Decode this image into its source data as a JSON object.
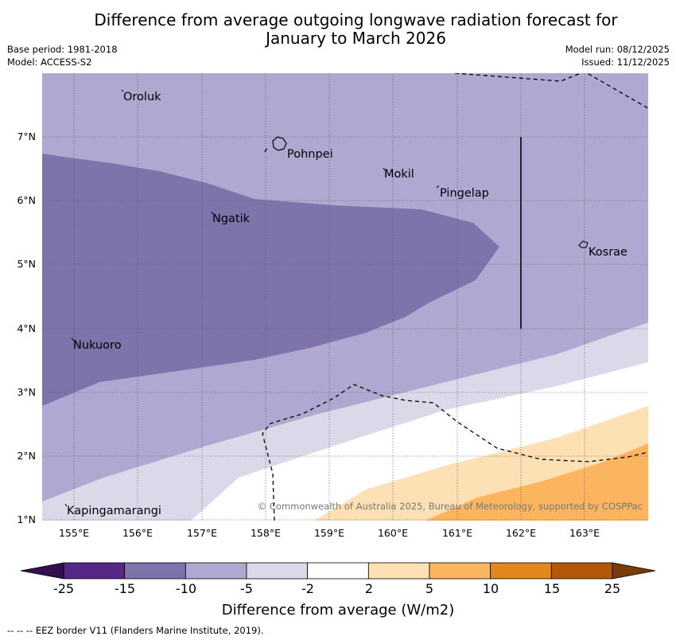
{
  "title_line1": "Difference from average outgoing longwave radiation forecast for",
  "title_line2": "January to March 2026",
  "base_period": "Base period: 1981-2018",
  "model": "Model: ACCESS-S2",
  "model_run": "Model run: 08/12/2025",
  "issued": "Issued: 11/12/2025",
  "map": {
    "lon_range": [
      154.5,
      164.0
    ],
    "lat_range": [
      1.0,
      8.0
    ],
    "x_ticks": [
      "155°E",
      "156°E",
      "157°E",
      "158°E",
      "159°E",
      "160°E",
      "161°E",
      "162°E",
      "163°E"
    ],
    "y_ticks": [
      "7°N",
      "6°N",
      "5°N",
      "4°N",
      "3°N",
      "2°N",
      "1°N"
    ],
    "places": [
      {
        "name": "Oroluk",
        "lon": 155.7,
        "lat": 7.7
      },
      {
        "name": "Pohnpei",
        "lon": 158.2,
        "lat": 6.9
      },
      {
        "name": "Mokil",
        "lon": 159.8,
        "lat": 6.7
      },
      {
        "name": "Pingelap",
        "lon": 160.7,
        "lat": 6.2
      },
      {
        "name": "Ngatik",
        "lon": 157.3,
        "lat": 5.8
      },
      {
        "name": "Kosrae",
        "lon": 163.0,
        "lat": 5.3
      },
      {
        "name": "Nukuoro",
        "lon": 155.0,
        "lat": 3.85
      },
      {
        "name": "Kapingamarangi",
        "lon": 154.8,
        "lat": 1.05
      }
    ],
    "copyright": "© Commonwealth of Australia 2025, Bureau of Meteorology, supported by COSPPac"
  },
  "legend": {
    "labels": [
      "-25",
      "-15",
      "-10",
      "-5",
      "-2",
      "2",
      "5",
      "10",
      "15",
      "25"
    ],
    "colors": [
      "#552888",
      "#7f73ab",
      "#afa8d0",
      "#d9d9ea",
      "#ffffff",
      "#fde0b4",
      "#fbb55f",
      "#e3861b",
      "#b35808"
    ],
    "end_low": "#33104d",
    "end_high": "#7a3b0a",
    "title": "Difference from average (W/m2)"
  },
  "footnote": "--  --  -- EEZ border V11 (Flanders Marine Institute, 2019)."
}
